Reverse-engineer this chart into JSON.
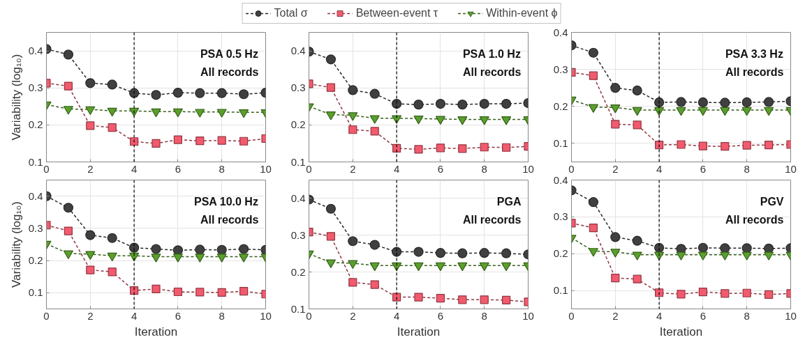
{
  "chart_data": [
    {
      "type": "line",
      "x": [
        0,
        1,
        2,
        3,
        4,
        5,
        6,
        7,
        8,
        9,
        10
      ],
      "ylabel": "Variability (log₁₀)",
      "annotations": [
        "PSA 0.5 Hz",
        "All records"
      ],
      "xlim": [
        0,
        10
      ],
      "ylim": [
        0.1,
        0.45
      ],
      "xticks": [
        0,
        2,
        4,
        6,
        8,
        10
      ],
      "yticks": [
        0.1,
        0.2,
        0.3,
        0.4
      ],
      "grid": true,
      "legend": "top",
      "line_style": "dashed",
      "ref_lines": [
        {
          "axis": "x",
          "value": 4,
          "color": "#000000",
          "line_style": "dashed"
        }
      ],
      "series": [
        {
          "name": "Total σ",
          "color": "#404040",
          "marker": "circle",
          "values": [
            0.405,
            0.39,
            0.313,
            0.309,
            0.286,
            0.281,
            0.287,
            0.286,
            0.286,
            0.283,
            0.287
          ]
        },
        {
          "name": "Between-event τ",
          "color": "#f25a6e",
          "marker": "square",
          "values": [
            0.313,
            0.305,
            0.198,
            0.193,
            0.155,
            0.15,
            0.16,
            0.157,
            0.158,
            0.156,
            0.163
          ]
        },
        {
          "name": "Within-event ϕ",
          "color": "#5aa02c",
          "marker": "triangle",
          "values": [
            0.255,
            0.243,
            0.242,
            0.238,
            0.238,
            0.236,
            0.236,
            0.235,
            0.235,
            0.234,
            0.234
          ]
        }
      ]
    },
    {
      "type": "line",
      "x": [
        0,
        1,
        2,
        3,
        4,
        5,
        6,
        7,
        8,
        9,
        10
      ],
      "annotations": [
        "PSA 1.0 Hz",
        "All records"
      ],
      "xlim": [
        0,
        10
      ],
      "ylim": [
        0.1,
        0.45
      ],
      "xticks": [
        0,
        2,
        4,
        6,
        8,
        10
      ],
      "yticks": [
        0.1,
        0.2,
        0.3,
        0.4
      ],
      "grid": true,
      "line_style": "dashed",
      "ref_lines": [
        {
          "axis": "x",
          "value": 4,
          "color": "#000000",
          "line_style": "dashed"
        }
      ],
      "series": [
        {
          "color": "#404040",
          "marker": "circle",
          "values": [
            0.398,
            0.377,
            0.294,
            0.284,
            0.257,
            0.255,
            0.257,
            0.255,
            0.257,
            0.257,
            0.259
          ]
        },
        {
          "color": "#f25a6e",
          "marker": "square",
          "values": [
            0.311,
            0.301,
            0.187,
            0.183,
            0.137,
            0.134,
            0.138,
            0.136,
            0.14,
            0.139,
            0.142
          ]
        },
        {
          "color": "#5aa02c",
          "marker": "triangle",
          "values": [
            0.25,
            0.228,
            0.226,
            0.218,
            0.218,
            0.217,
            0.216,
            0.215,
            0.215,
            0.215,
            0.215
          ]
        }
      ]
    },
    {
      "type": "line",
      "x": [
        0,
        1,
        2,
        3,
        4,
        5,
        6,
        7,
        8,
        9,
        10
      ],
      "annotations": [
        "PSA 3.3 Hz",
        "All records"
      ],
      "xlim": [
        0,
        10
      ],
      "ylim": [
        0.05,
        0.4
      ],
      "xticks": [
        0,
        2,
        4,
        6,
        8,
        10
      ],
      "yticks": [
        0.1,
        0.2,
        0.3,
        0.4
      ],
      "grid": true,
      "line_style": "dashed",
      "ref_lines": [
        {
          "axis": "x",
          "value": 4,
          "color": "#000000",
          "line_style": "dashed"
        }
      ],
      "series": [
        {
          "color": "#404040",
          "marker": "circle",
          "values": [
            0.365,
            0.345,
            0.25,
            0.243,
            0.211,
            0.212,
            0.211,
            0.21,
            0.211,
            0.212,
            0.214
          ]
        },
        {
          "color": "#f25a6e",
          "marker": "square",
          "values": [
            0.292,
            0.283,
            0.152,
            0.15,
            0.096,
            0.097,
            0.093,
            0.092,
            0.095,
            0.096,
            0.097
          ]
        },
        {
          "color": "#5aa02c",
          "marker": "triangle",
          "values": [
            0.218,
            0.198,
            0.197,
            0.19,
            0.19,
            0.19,
            0.19,
            0.19,
            0.19,
            0.19,
            0.19
          ]
        }
      ]
    },
    {
      "type": "line",
      "x": [
        0,
        1,
        2,
        3,
        4,
        5,
        6,
        7,
        8,
        9,
        10
      ],
      "xlabel": "Iteration",
      "ylabel": "Variability (log₁₀)",
      "annotations": [
        "PSA 10.0 Hz",
        "All records"
      ],
      "xlim": [
        0,
        10
      ],
      "ylim": [
        0.05,
        0.45
      ],
      "xticks": [
        0,
        2,
        4,
        6,
        8,
        10
      ],
      "yticks": [
        0.1,
        0.2,
        0.3,
        0.4
      ],
      "grid": true,
      "line_style": "dashed",
      "ref_lines": [
        {
          "axis": "x",
          "value": 4,
          "color": "#000000",
          "line_style": "dashed"
        }
      ],
      "series": [
        {
          "color": "#404040",
          "marker": "circle",
          "values": [
            0.4,
            0.364,
            0.279,
            0.27,
            0.24,
            0.236,
            0.232,
            0.234,
            0.233,
            0.236,
            0.233
          ]
        },
        {
          "color": "#f25a6e",
          "marker": "square",
          "values": [
            0.31,
            0.292,
            0.171,
            0.165,
            0.107,
            0.112,
            0.103,
            0.102,
            0.101,
            0.105,
            0.096
          ]
        },
        {
          "color": "#5aa02c",
          "marker": "triangle",
          "values": [
            0.252,
            0.222,
            0.22,
            0.215,
            0.215,
            0.212,
            0.212,
            0.212,
            0.212,
            0.212,
            0.212
          ]
        }
      ]
    },
    {
      "type": "line",
      "x": [
        0,
        1,
        2,
        3,
        4,
        5,
        6,
        7,
        8,
        9,
        10
      ],
      "xlabel": "Iteration",
      "annotations": [
        "PGA",
        "All records"
      ],
      "xlim": [
        0,
        10
      ],
      "ylim": [
        0.1,
        0.45
      ],
      "xticks": [
        0,
        2,
        4,
        6,
        8,
        10
      ],
      "yticks": [
        0.1,
        0.2,
        0.3,
        0.4
      ],
      "grid": true,
      "line_style": "dashed",
      "ref_lines": [
        {
          "axis": "x",
          "value": 4,
          "color": "#000000",
          "line_style": "dashed"
        }
      ],
      "series": [
        {
          "color": "#404040",
          "marker": "circle",
          "values": [
            0.397,
            0.372,
            0.284,
            0.274,
            0.255,
            0.255,
            0.252,
            0.251,
            0.252,
            0.251,
            0.248
          ]
        },
        {
          "color": "#f25a6e",
          "marker": "square",
          "values": [
            0.309,
            0.297,
            0.172,
            0.166,
            0.132,
            0.132,
            0.129,
            0.125,
            0.125,
            0.124,
            0.119
          ]
        },
        {
          "color": "#5aa02c",
          "marker": "triangle",
          "values": [
            0.25,
            0.226,
            0.224,
            0.218,
            0.218,
            0.218,
            0.218,
            0.218,
            0.218,
            0.218,
            0.218
          ]
        }
      ]
    },
    {
      "type": "line",
      "x": [
        0,
        1,
        2,
        3,
        4,
        5,
        6,
        7,
        8,
        9,
        10
      ],
      "xlabel": "Iteration",
      "annotations": [
        "PGV",
        "All records"
      ],
      "xlim": [
        0,
        10
      ],
      "ylim": [
        0.05,
        0.4
      ],
      "xticks": [
        0,
        2,
        4,
        6,
        8,
        10
      ],
      "yticks": [
        0.1,
        0.2,
        0.3,
        0.4
      ],
      "grid": true,
      "line_style": "dashed",
      "ref_lines": [
        {
          "axis": "x",
          "value": 4,
          "color": "#000000",
          "line_style": "dashed"
        }
      ],
      "series": [
        {
          "color": "#404040",
          "marker": "circle",
          "values": [
            0.372,
            0.34,
            0.245,
            0.235,
            0.216,
            0.213,
            0.216,
            0.215,
            0.215,
            0.214,
            0.215
          ]
        },
        {
          "color": "#f25a6e",
          "marker": "square",
          "values": [
            0.283,
            0.27,
            0.134,
            0.131,
            0.094,
            0.09,
            0.096,
            0.092,
            0.093,
            0.089,
            0.092
          ]
        },
        {
          "color": "#5aa02c",
          "marker": "triangle",
          "values": [
            0.243,
            0.207,
            0.205,
            0.197,
            0.197,
            0.197,
            0.197,
            0.197,
            0.197,
            0.197,
            0.197
          ]
        }
      ]
    }
  ]
}
